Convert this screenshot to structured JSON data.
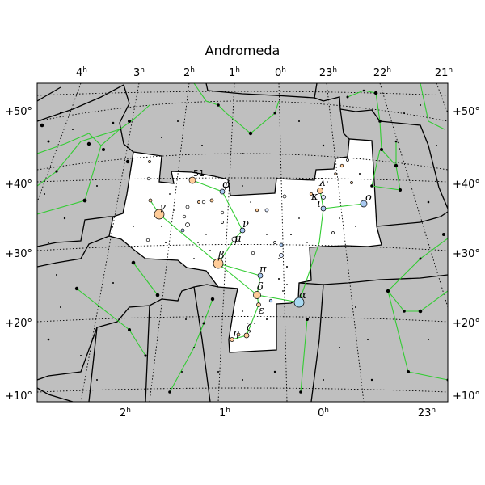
{
  "title": "Andromeda",
  "colors": {
    "outside_fill": "#bfbfbf",
    "inside_fill": "#ffffff",
    "boundary": "#000000",
    "constellation_lines": "#33cc33",
    "grid": "#000000"
  },
  "axes": {
    "top_ra_labels": [
      {
        "h": "4",
        "s": "h"
      },
      {
        "h": "3",
        "s": "h"
      },
      {
        "h": "2",
        "s": "h"
      },
      {
        "h": "1",
        "s": "h"
      },
      {
        "h": "0",
        "s": "h"
      },
      {
        "h": "23",
        "s": "h"
      },
      {
        "h": "22",
        "s": "h"
      },
      {
        "h": "21",
        "s": "h"
      }
    ],
    "bottom_ra_labels": [
      {
        "h": "2",
        "s": "h"
      },
      {
        "h": "1",
        "s": "h"
      },
      {
        "h": "0",
        "s": "h"
      },
      {
        "h": "23",
        "s": "h"
      }
    ],
    "dec_labels": [
      "+50°",
      "+40°",
      "+30°",
      "+20°",
      "+10°"
    ]
  },
  "star_labels": [
    "51",
    "φ",
    "λ",
    "κ",
    "ι",
    "o",
    "γ",
    "ν",
    "μ",
    "β",
    "π",
    "δ",
    "α",
    "ε",
    "ζ",
    "η"
  ]
}
